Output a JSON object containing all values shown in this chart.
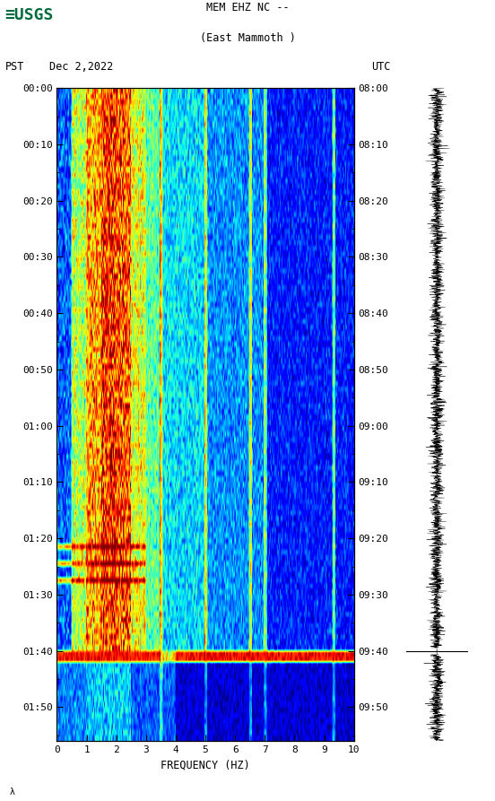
{
  "title_line1": "MEM EHZ NC --",
  "title_line2": "(East Mammoth )",
  "date_label": "Dec 2,2022",
  "pst_label": "PST",
  "utc_label": "UTC",
  "left_times": [
    "00:00",
    "00:10",
    "00:20",
    "00:30",
    "00:40",
    "00:50",
    "01:00",
    "01:10",
    "01:20",
    "01:30",
    "01:40",
    "01:50"
  ],
  "right_times": [
    "08:00",
    "08:10",
    "08:20",
    "08:30",
    "08:40",
    "08:50",
    "09:00",
    "09:10",
    "09:20",
    "09:30",
    "09:40",
    "09:50"
  ],
  "freq_label": "FREQUENCY (HZ)",
  "freq_ticks": [
    0,
    1,
    2,
    3,
    4,
    5,
    6,
    7,
    8,
    9,
    10
  ],
  "time_steps": 116,
  "freq_steps": 300,
  "bg_color": "white",
  "usgs_green": "#006b3c",
  "fig_width": 5.52,
  "fig_height": 8.93
}
